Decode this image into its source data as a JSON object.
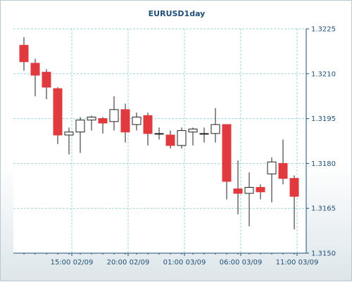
{
  "chart_data": {
    "type": "candlestick",
    "title": "EURUSD1day",
    "xlabel": "",
    "ylabel": "",
    "ylim": [
      1.315,
      1.3225
    ],
    "y_ticks": [
      "1.3225",
      "1.3210",
      "1.3195",
      "1.3180",
      "1.3165",
      "1.3150"
    ],
    "x_ticks": [
      {
        "label": "15:00 02/09",
        "at_candle": 5
      },
      {
        "label": "20:00 02/09",
        "at_candle": 10
      },
      {
        "label": "01:00 03/09",
        "at_candle": 15
      },
      {
        "label": "06:00 03/09",
        "at_candle": 20
      },
      {
        "label": "11:00 03/09",
        "at_candle": 25
      }
    ],
    "grid": true,
    "colors": {
      "up_fill": "#ffffff",
      "down_fill": "#e0393e",
      "wick": "#222222",
      "grid": "#9bd3d3"
    },
    "candles": [
      {
        "o": 1.32195,
        "h": 1.32222,
        "l": 1.3211,
        "c": 1.3214
      },
      {
        "o": 1.32135,
        "h": 1.3215,
        "l": 1.32025,
        "c": 1.32095
      },
      {
        "o": 1.32105,
        "h": 1.32115,
        "l": 1.32015,
        "c": 1.32055
      },
      {
        "o": 1.3205,
        "h": 1.32055,
        "l": 1.31865,
        "c": 1.31895
      },
      {
        "o": 1.31895,
        "h": 1.3192,
        "l": 1.3183,
        "c": 1.31905
      },
      {
        "o": 1.31905,
        "h": 1.31955,
        "l": 1.31835,
        "c": 1.31945
      },
      {
        "o": 1.31945,
        "h": 1.3196,
        "l": 1.3191,
        "c": 1.31955
      },
      {
        "o": 1.3195,
        "h": 1.31955,
        "l": 1.319,
        "c": 1.31935
      },
      {
        "o": 1.3194,
        "h": 1.32025,
        "l": 1.3191,
        "c": 1.3198
      },
      {
        "o": 1.3198,
        "h": 1.32,
        "l": 1.3187,
        "c": 1.31905
      },
      {
        "o": 1.3193,
        "h": 1.3197,
        "l": 1.3191,
        "c": 1.31955
      },
      {
        "o": 1.3196,
        "h": 1.3197,
        "l": 1.3186,
        "c": 1.319
      },
      {
        "o": 1.319,
        "h": 1.3192,
        "l": 1.3188,
        "c": 1.319
      },
      {
        "o": 1.31895,
        "h": 1.3191,
        "l": 1.3185,
        "c": 1.3186
      },
      {
        "o": 1.3186,
        "h": 1.3192,
        "l": 1.3185,
        "c": 1.3191
      },
      {
        "o": 1.31905,
        "h": 1.3192,
        "l": 1.3186,
        "c": 1.31915
      },
      {
        "o": 1.319,
        "h": 1.3192,
        "l": 1.3187,
        "c": 1.319
      },
      {
        "o": 1.319,
        "h": 1.31985,
        "l": 1.3187,
        "c": 1.3193
      },
      {
        "o": 1.3193,
        "h": 1.3193,
        "l": 1.3168,
        "c": 1.3174
      },
      {
        "o": 1.31715,
        "h": 1.3181,
        "l": 1.3163,
        "c": 1.317
      },
      {
        "o": 1.317,
        "h": 1.3177,
        "l": 1.3159,
        "c": 1.3172
      },
      {
        "o": 1.3172,
        "h": 1.3173,
        "l": 1.3168,
        "c": 1.31705
      },
      {
        "o": 1.31765,
        "h": 1.3182,
        "l": 1.3167,
        "c": 1.31805
      },
      {
        "o": 1.318,
        "h": 1.3188,
        "l": 1.3173,
        "c": 1.3175
      },
      {
        "o": 1.3175,
        "h": 1.3176,
        "l": 1.3158,
        "c": 1.3169
      }
    ]
  }
}
